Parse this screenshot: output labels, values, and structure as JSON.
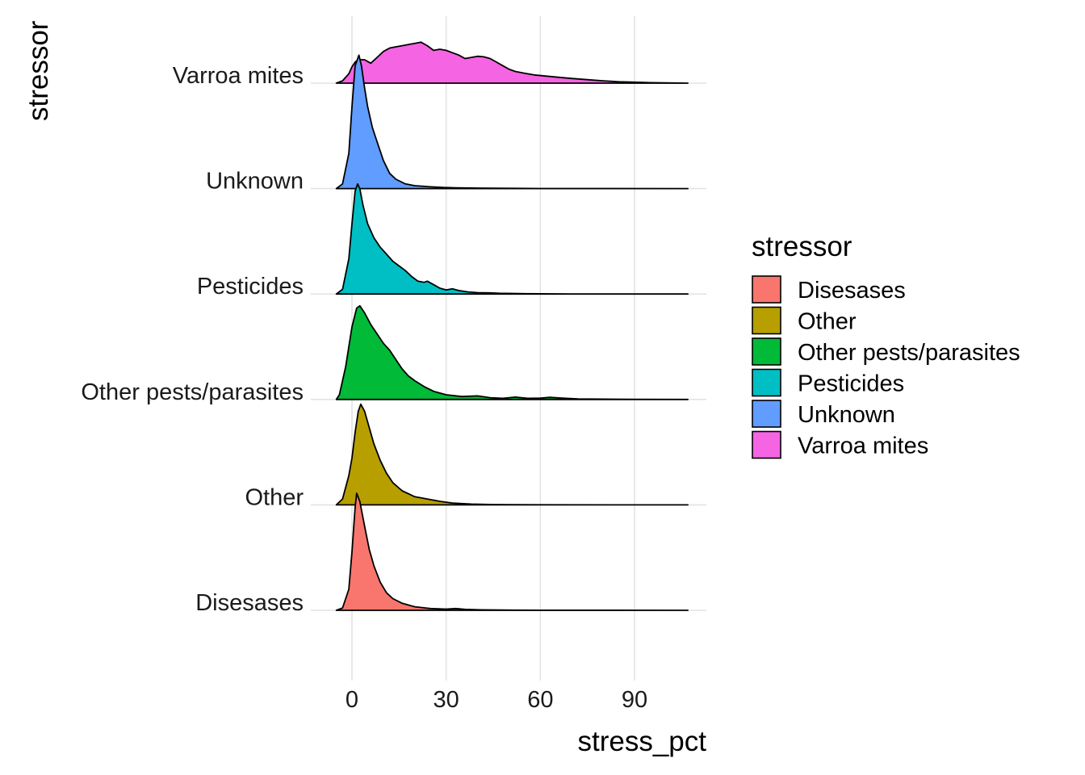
{
  "chart_data": {
    "type": "ridgeline",
    "xlabel": "stress_pct",
    "ylabel": "stressor",
    "xlim": [
      -13,
      113
    ],
    "x_ticks": [
      0,
      30,
      60,
      90
    ],
    "x_tick_labels": [
      "0",
      "30",
      "60",
      "90"
    ],
    "grid": true,
    "legend": {
      "title": "stressor",
      "placement": "right",
      "entries": [
        {
          "label": "Disesases",
          "color": "#F8766D"
        },
        {
          "label": "Other",
          "color": "#B79F00"
        },
        {
          "label": "Other pests/parasites",
          "color": "#00BA38"
        },
        {
          "label": "Pesticides",
          "color": "#00BFC4"
        },
        {
          "label": "Unknown",
          "color": "#619CFF"
        },
        {
          "label": "Varroa mites",
          "color": "#F564E3"
        }
      ]
    },
    "density_x_range": [
      -5,
      107
    ],
    "series": [
      {
        "name": "Disesases",
        "color": "#F8766D",
        "density": [
          [
            -5,
            0
          ],
          [
            -3,
            0.02
          ],
          [
            -1,
            0.18
          ],
          [
            0,
            0.5
          ],
          [
            1,
            0.88
          ],
          [
            1.5,
            1.0
          ],
          [
            2.5,
            0.93
          ],
          [
            4,
            0.72
          ],
          [
            5.5,
            0.52
          ],
          [
            7,
            0.38
          ],
          [
            9,
            0.24
          ],
          [
            11,
            0.15
          ],
          [
            13,
            0.1
          ],
          [
            16,
            0.06
          ],
          [
            20,
            0.03
          ],
          [
            25,
            0.015
          ],
          [
            30,
            0.01
          ],
          [
            33,
            0.015
          ],
          [
            36,
            0.008
          ],
          [
            41,
            0.004
          ],
          [
            48,
            0.002
          ],
          [
            60,
            0.001
          ],
          [
            80,
            0.0005
          ],
          [
            107,
            0
          ]
        ]
      },
      {
        "name": "Other",
        "color": "#B79F00",
        "density": [
          [
            -5,
            0
          ],
          [
            -3,
            0.05
          ],
          [
            -1,
            0.25
          ],
          [
            0,
            0.4
          ],
          [
            1,
            0.62
          ],
          [
            2,
            0.8
          ],
          [
            2.8,
            0.86
          ],
          [
            4,
            0.8
          ],
          [
            5.5,
            0.66
          ],
          [
            7,
            0.52
          ],
          [
            9,
            0.38
          ],
          [
            11,
            0.27
          ],
          [
            13,
            0.19
          ],
          [
            16,
            0.12
          ],
          [
            20,
            0.07
          ],
          [
            24,
            0.05
          ],
          [
            28,
            0.03
          ],
          [
            32,
            0.015
          ],
          [
            38,
            0.007
          ],
          [
            45,
            0.003
          ],
          [
            60,
            0.001
          ],
          [
            107,
            0
          ]
        ]
      },
      {
        "name": "Other pests/parasites",
        "color": "#00BA38",
        "density": [
          [
            -5,
            0
          ],
          [
            -4,
            0.04
          ],
          [
            -2,
            0.28
          ],
          [
            0,
            0.62
          ],
          [
            1.5,
            0.78
          ],
          [
            2.5,
            0.8
          ],
          [
            4,
            0.74
          ],
          [
            6,
            0.64
          ],
          [
            8,
            0.56
          ],
          [
            10,
            0.48
          ],
          [
            12,
            0.42
          ],
          [
            14,
            0.34
          ],
          [
            16,
            0.26
          ],
          [
            18,
            0.2
          ],
          [
            20,
            0.16
          ],
          [
            23,
            0.11
          ],
          [
            26,
            0.07
          ],
          [
            30,
            0.04
          ],
          [
            35,
            0.025
          ],
          [
            40,
            0.03
          ],
          [
            44,
            0.015
          ],
          [
            48,
            0.01
          ],
          [
            52,
            0.02
          ],
          [
            56,
            0.01
          ],
          [
            60,
            0.012
          ],
          [
            63,
            0.018
          ],
          [
            67,
            0.012
          ],
          [
            72,
            0.005
          ],
          [
            80,
            0.003
          ],
          [
            90,
            0.001
          ],
          [
            107,
            0
          ]
        ]
      },
      {
        "name": "Pesticides",
        "color": "#00BFC4",
        "density": [
          [
            -5,
            0
          ],
          [
            -3,
            0.04
          ],
          [
            -1,
            0.3
          ],
          [
            0,
            0.6
          ],
          [
            1,
            0.88
          ],
          [
            1.8,
            0.94
          ],
          [
            2.5,
            0.9
          ],
          [
            3.5,
            0.76
          ],
          [
            5,
            0.6
          ],
          [
            7,
            0.48
          ],
          [
            9,
            0.4
          ],
          [
            11,
            0.34
          ],
          [
            13,
            0.28
          ],
          [
            15,
            0.24
          ],
          [
            17,
            0.2
          ],
          [
            19,
            0.15
          ],
          [
            21,
            0.11
          ],
          [
            23,
            0.1
          ],
          [
            24,
            0.11
          ],
          [
            26,
            0.08
          ],
          [
            28,
            0.05
          ],
          [
            30,
            0.035
          ],
          [
            32,
            0.045
          ],
          [
            34,
            0.03
          ],
          [
            37,
            0.018
          ],
          [
            40,
            0.012
          ],
          [
            44,
            0.01
          ],
          [
            47,
            0.006
          ],
          [
            55,
            0.003
          ],
          [
            70,
            0.001
          ],
          [
            107,
            0
          ]
        ]
      },
      {
        "name": "Unknown",
        "color": "#619CFF",
        "density": [
          [
            -5,
            0
          ],
          [
            -3,
            0.04
          ],
          [
            -1,
            0.3
          ],
          [
            0,
            0.7
          ],
          [
            1,
            1.05
          ],
          [
            2.2,
            1.14
          ],
          [
            3,
            1.05
          ],
          [
            4,
            0.86
          ],
          [
            5,
            0.7
          ],
          [
            6.5,
            0.52
          ],
          [
            8,
            0.4
          ],
          [
            10,
            0.24
          ],
          [
            12,
            0.13
          ],
          [
            14,
            0.08
          ],
          [
            17,
            0.04
          ],
          [
            20,
            0.025
          ],
          [
            25,
            0.015
          ],
          [
            29,
            0.01
          ],
          [
            33,
            0.007
          ],
          [
            40,
            0.004
          ],
          [
            50,
            0.002
          ],
          [
            60,
            0.001
          ],
          [
            80,
            0.0005
          ],
          [
            107,
            0
          ]
        ]
      },
      {
        "name": "Varroa mites",
        "color": "#F564E3",
        "density": [
          [
            -5,
            0
          ],
          [
            -3,
            0.02
          ],
          [
            -1,
            0.08
          ],
          [
            0,
            0.14
          ],
          [
            1,
            0.18
          ],
          [
            2,
            0.2
          ],
          [
            4,
            0.2
          ],
          [
            6,
            0.17
          ],
          [
            8,
            0.22
          ],
          [
            10,
            0.27
          ],
          [
            12,
            0.3
          ],
          [
            14,
            0.31
          ],
          [
            16,
            0.32
          ],
          [
            18,
            0.33
          ],
          [
            20,
            0.34
          ],
          [
            22,
            0.35
          ],
          [
            24,
            0.32
          ],
          [
            26,
            0.28
          ],
          [
            28,
            0.29
          ],
          [
            30,
            0.28
          ],
          [
            32,
            0.26
          ],
          [
            34,
            0.24
          ],
          [
            36,
            0.21
          ],
          [
            38,
            0.22
          ],
          [
            40,
            0.23
          ],
          [
            42,
            0.225
          ],
          [
            44,
            0.21
          ],
          [
            46,
            0.18
          ],
          [
            48,
            0.15
          ],
          [
            50,
            0.12
          ],
          [
            52,
            0.1
          ],
          [
            55,
            0.085
          ],
          [
            58,
            0.07
          ],
          [
            62,
            0.06
          ],
          [
            66,
            0.05
          ],
          [
            70,
            0.04
          ],
          [
            75,
            0.03
          ],
          [
            80,
            0.02
          ],
          [
            85,
            0.012
          ],
          [
            90,
            0.008
          ],
          [
            95,
            0.004
          ],
          [
            100,
            0.002
          ],
          [
            107,
            0
          ]
        ]
      }
    ]
  }
}
